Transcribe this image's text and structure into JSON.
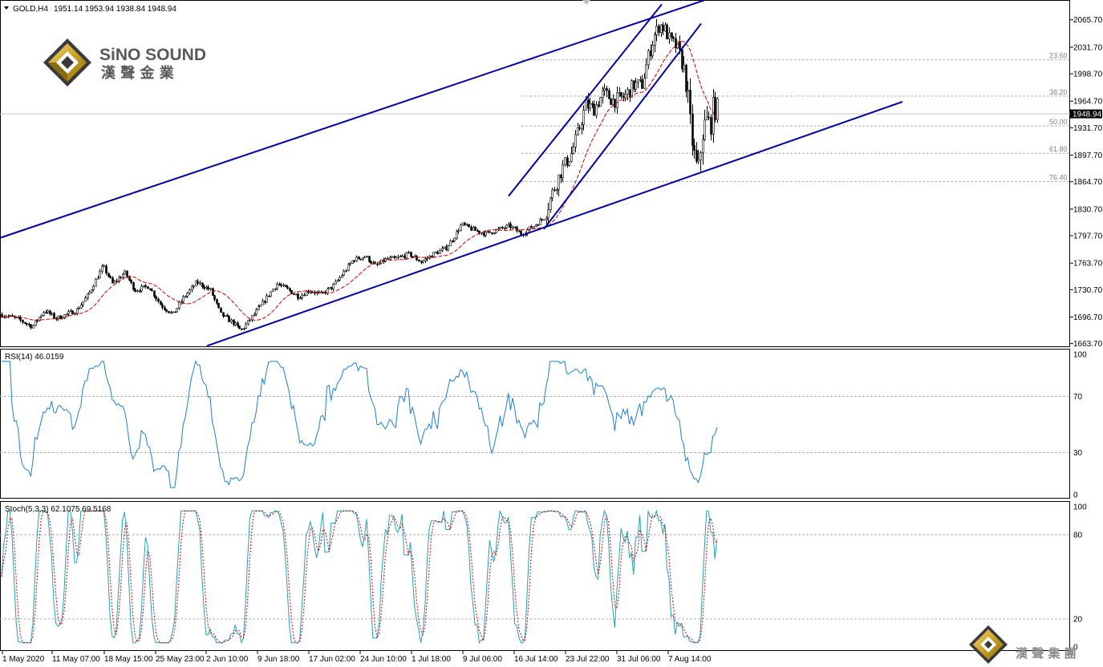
{
  "header": {
    "symbol": "GOLD,H4",
    "ohlc": "1951.14 1953.94 1938.84 1948.94"
  },
  "brand": {
    "name_en": "SiNO SOUND",
    "name_cn": "漢 聲 金 業",
    "footer_cn": "漢 聲 集 團",
    "colors": {
      "gold": "#c9a227",
      "gray": "#58595b",
      "dark": "#1a1a1a"
    }
  },
  "colors": {
    "trendline": "#0000a0",
    "candle": "#000000",
    "ma": "#cc0000",
    "rsi": "#1e7fd0",
    "stoch_main": "#1fa3b8",
    "stoch_signal": "#cc0000",
    "grid_dash": "#b0b0b0"
  },
  "current_price": "1948.94",
  "chart_data": [
    {
      "type": "candlestick",
      "title": "GOLD,H4",
      "y_ticks": [
        "2065.70",
        "2031.70",
        "1998.70",
        "1964.70",
        "1931.70",
        "1897.70",
        "1864.70",
        "1830.70",
        "1797.70",
        "1763.70",
        "1730.70",
        "1696.70",
        "1663.70"
      ],
      "ylim": [
        1660.4,
        2089.3
      ],
      "x_tick_labels": [
        "1 May 2020",
        "11 May 07:00",
        "18 May 15:00",
        "25 May 23:00",
        "2 Jun 10:00",
        "9 Jun 18:00",
        "17 Jun 02:00",
        "24 Jun 10:00",
        "1 Jul 18:00",
        "9 Jul 06:00",
        "16 Jul 14:00",
        "23 Jul 22:00",
        "31 Jul 06:00",
        "7 Aug 14:00"
      ],
      "price_path": [
        [
          0,
          1700
        ],
        [
          20,
          1695
        ],
        [
          40,
          1685
        ],
        [
          55,
          1705
        ],
        [
          70,
          1695
        ],
        [
          95,
          1705
        ],
        [
          110,
          1725
        ],
        [
          128,
          1760
        ],
        [
          140,
          1738
        ],
        [
          155,
          1752
        ],
        [
          168,
          1730
        ],
        [
          185,
          1735
        ],
        [
          200,
          1712
        ],
        [
          215,
          1700
        ],
        [
          228,
          1720
        ],
        [
          245,
          1740
        ],
        [
          262,
          1730
        ],
        [
          275,
          1700
        ],
        [
          290,
          1690
        ],
        [
          300,
          1680
        ],
        [
          315,
          1698
        ],
        [
          330,
          1718
        ],
        [
          345,
          1738
        ],
        [
          360,
          1730
        ],
        [
          372,
          1722
        ],
        [
          385,
          1730
        ],
        [
          400,
          1725
        ],
        [
          415,
          1735
        ],
        [
          428,
          1752
        ],
        [
          440,
          1768
        ],
        [
          455,
          1772
        ],
        [
          468,
          1760
        ],
        [
          480,
          1768
        ],
        [
          495,
          1770
        ],
        [
          510,
          1775
        ],
        [
          525,
          1765
        ],
        [
          540,
          1775
        ],
        [
          555,
          1782
        ],
        [
          565,
          1795
        ],
        [
          575,
          1812
        ],
        [
          590,
          1805
        ],
        [
          605,
          1800
        ],
        [
          620,
          1805
        ],
        [
          635,
          1810
        ],
        [
          650,
          1800
        ],
        [
          665,
          1810
        ],
        [
          678,
          1820
        ],
        [
          688,
          1850
        ],
        [
          700,
          1880
        ],
        [
          712,
          1900
        ],
        [
          720,
          1925
        ],
        [
          730,
          1960
        ],
        [
          740,
          1955
        ],
        [
          752,
          1975
        ],
        [
          765,
          1965
        ],
        [
          778,
          1970
        ],
        [
          790,
          1985
        ],
        [
          800,
          1985
        ],
        [
          808,
          2020
        ],
        [
          815,
          2045
        ],
        [
          822,
          2060
        ],
        [
          828,
          2055
        ],
        [
          835,
          2040
        ],
        [
          845,
          2030
        ],
        [
          855,
          1990
        ],
        [
          860,
          1935
        ],
        [
          866,
          1890
        ],
        [
          870,
          1875
        ],
        [
          875,
          1925
        ],
        [
          880,
          1940
        ],
        [
          885,
          1935
        ],
        [
          890,
          1960
        ],
        [
          895,
          1950
        ]
      ],
      "series": [
        {
          "name": "",
          "kind": "moving-average"
        }
      ],
      "fibonacci": {
        "levels": [
          "23.60",
          "38.20",
          "50.00",
          "61.80",
          "76.40"
        ],
        "values": [
          2016,
          1971,
          1934,
          1900,
          1865
        ]
      },
      "trendlines": [
        {
          "name": "upper-channel",
          "from": [
            0,
            1795
          ],
          "to": [
            878,
            2090
          ]
        },
        {
          "name": "lower-channel",
          "from": [
            258,
            1661
          ],
          "to": [
            1125,
            1964
          ]
        },
        {
          "name": "steep-upper",
          "from": [
            634,
            1847
          ],
          "to": [
            825,
            2085
          ]
        },
        {
          "name": "steep-lower",
          "from": [
            678,
            1806
          ],
          "to": [
            874,
            2061
          ]
        }
      ]
    },
    {
      "type": "line",
      "title": "RSI(14) 46.0159",
      "y_ticks": [
        "100",
        "70",
        "30",
        "0"
      ],
      "ylim": [
        0,
        100
      ],
      "levels": [
        70,
        30
      ],
      "grid": false
    },
    {
      "type": "line",
      "title": "Stoch(5,3,3) 62.1075 69.5168",
      "y_ticks": [
        "100",
        "80",
        "20",
        "0"
      ],
      "ylim": [
        0,
        100
      ],
      "levels": [
        80,
        20
      ],
      "grid": false
    }
  ]
}
